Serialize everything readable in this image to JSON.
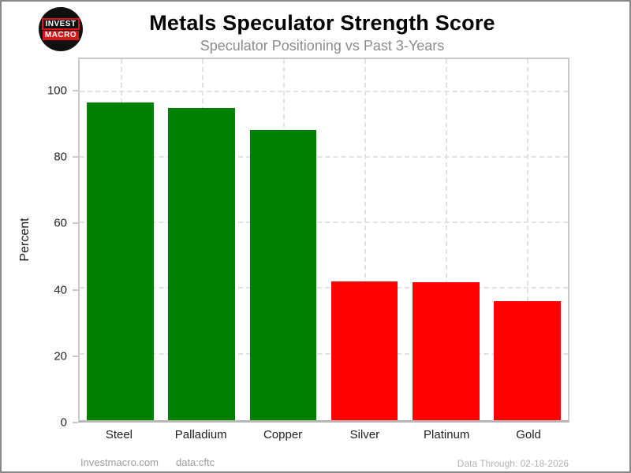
{
  "header": {
    "title": "Metals Speculator Strength Score",
    "subtitle": "Speculator Positioning vs Past 3-Years",
    "logo": {
      "line1": "INVEST",
      "line2": "MACRO"
    }
  },
  "chart_data": {
    "type": "bar",
    "title": "Metals Speculator Strength Score",
    "subtitle": "Speculator Positioning vs Past 3-Years",
    "categories": [
      "Steel",
      "Palladium",
      "Copper",
      "Silver",
      "Platinum",
      "Gold"
    ],
    "values": [
      96.8,
      95.2,
      88.5,
      42.3,
      42.0,
      36.2
    ],
    "bar_colors": [
      "#008000",
      "#008000",
      "#008000",
      "#ff0000",
      "#ff0000",
      "#ff0000"
    ],
    "xlabel": "",
    "ylabel": "Percent",
    "ylim": [
      0,
      110
    ],
    "yticks": [
      0,
      20,
      40,
      60,
      80,
      100
    ],
    "grid": "dashed horizontal at y-ticks and dashed vertical at category centers",
    "legend": "none"
  },
  "colors": {
    "bullish_green": "#008000",
    "bearish_red": "#ff0000",
    "logo_red": "#d8151b",
    "gridline": "#e2e2e2",
    "plot_border": "#c9c9c9",
    "outer_border": "#888888",
    "subtitle_gray": "#8c8c8c"
  },
  "footer": {
    "left_site": "Investmacro.com",
    "left_source": "data:cftc",
    "right": "Data Through: 02-18-2026"
  }
}
